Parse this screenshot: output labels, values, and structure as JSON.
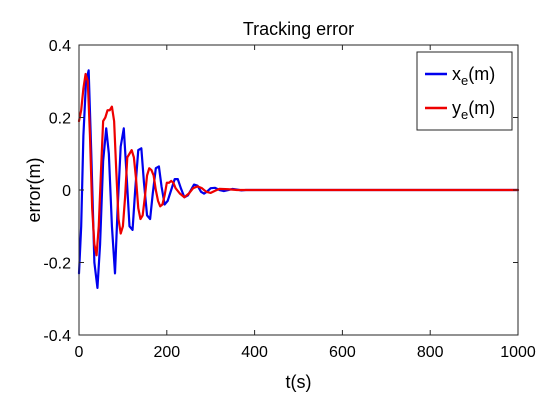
{
  "chart_data": {
    "type": "line",
    "title": "Tracking error",
    "xlabel": "t(s)",
    "ylabel": "error(m)",
    "xlim": [
      0,
      1000
    ],
    "ylim": [
      -0.4,
      0.4
    ],
    "xticks": [
      0,
      200,
      400,
      600,
      800,
      1000
    ],
    "yticks": [
      -0.4,
      -0.2,
      0,
      0.2,
      0.4
    ],
    "xtick_labels": [
      "0",
      "200",
      "400",
      "600",
      "800",
      "1000"
    ],
    "ytick_labels": [
      "-0.4",
      "-0.2",
      "0",
      "0.2",
      "0.4"
    ],
    "grid": false,
    "legend_position": "top-right",
    "series": [
      {
        "name": "x_e(m)",
        "legend_main": "x",
        "legend_sub": "e",
        "legend_rest": "(m)",
        "color": "#0000ee",
        "x": [
          0,
          5,
          10,
          16,
          22,
          28,
          35,
          42,
          48,
          55,
          62,
          68,
          75,
          82,
          88,
          95,
          102,
          108,
          115,
          122,
          128,
          135,
          142,
          148,
          155,
          162,
          168,
          175,
          182,
          188,
          195,
          202,
          210,
          218,
          225,
          232,
          240,
          248,
          255,
          262,
          270,
          278,
          285,
          292,
          300,
          310,
          320,
          330,
          340,
          350,
          360,
          370,
          380,
          390,
          400,
          420,
          440,
          460,
          480,
          500,
          550,
          600,
          700,
          800,
          900,
          1000
        ],
        "y": [
          -0.23,
          -0.1,
          0.15,
          0.3,
          0.33,
          0.1,
          -0.2,
          -0.27,
          -0.15,
          0.08,
          0.17,
          0.1,
          -0.1,
          -0.23,
          -0.05,
          0.12,
          0.17,
          0.05,
          -0.1,
          -0.11,
          0.0,
          0.11,
          0.115,
          0.02,
          -0.07,
          -0.08,
          -0.01,
          0.06,
          0.065,
          0.01,
          -0.04,
          -0.03,
          0.0,
          0.03,
          0.03,
          0.005,
          -0.02,
          -0.015,
          0.0,
          0.015,
          0.012,
          -0.005,
          -0.01,
          -0.004,
          0.005,
          0.006,
          0.0,
          -0.003,
          0.0,
          0.003,
          0.001,
          -0.001,
          0.0,
          0.0,
          0.0,
          0.0,
          0.0,
          0.0,
          0.0,
          0.0,
          0.0,
          0.0,
          0.0,
          0.0,
          0.0,
          0.0
        ]
      },
      {
        "name": "y_e(m)",
        "legend_main": "y",
        "legend_sub": "e",
        "legend_rest": "(m)",
        "color": "#ee0000",
        "x": [
          0,
          5,
          10,
          15,
          20,
          25,
          30,
          35,
          40,
          45,
          50,
          55,
          60,
          65,
          70,
          75,
          80,
          85,
          90,
          95,
          100,
          105,
          110,
          115,
          120,
          125,
          130,
          135,
          140,
          145,
          150,
          155,
          160,
          165,
          170,
          175,
          180,
          185,
          190,
          195,
          200,
          205,
          210,
          215,
          220,
          230,
          240,
          250,
          260,
          270,
          280,
          290,
          300,
          310,
          320,
          340,
          360,
          380,
          400,
          420,
          440,
          460,
          480,
          500,
          550,
          600,
          700,
          800,
          900,
          1000
        ],
        "y": [
          0.19,
          0.22,
          0.28,
          0.32,
          0.3,
          0.15,
          -0.05,
          -0.15,
          -0.18,
          -0.1,
          0.05,
          0.19,
          0.2,
          0.22,
          0.22,
          0.23,
          0.19,
          0.05,
          -0.08,
          -0.12,
          -0.1,
          -0.02,
          0.09,
          0.1,
          0.11,
          0.09,
          0.03,
          -0.05,
          -0.08,
          -0.07,
          -0.02,
          0.04,
          0.06,
          0.055,
          0.04,
          0.0,
          -0.03,
          -0.045,
          -0.04,
          -0.015,
          0.02,
          0.02,
          0.025,
          0.02,
          0.005,
          -0.01,
          -0.02,
          -0.01,
          0.005,
          0.01,
          0.005,
          -0.005,
          -0.008,
          -0.002,
          0.003,
          0.002,
          0.0,
          0.0,
          0.0,
          0.0,
          0.0,
          0.0,
          0.0,
          0.0,
          0.0,
          0.0,
          0.0,
          0.0,
          0.0,
          0.0
        ]
      }
    ]
  }
}
